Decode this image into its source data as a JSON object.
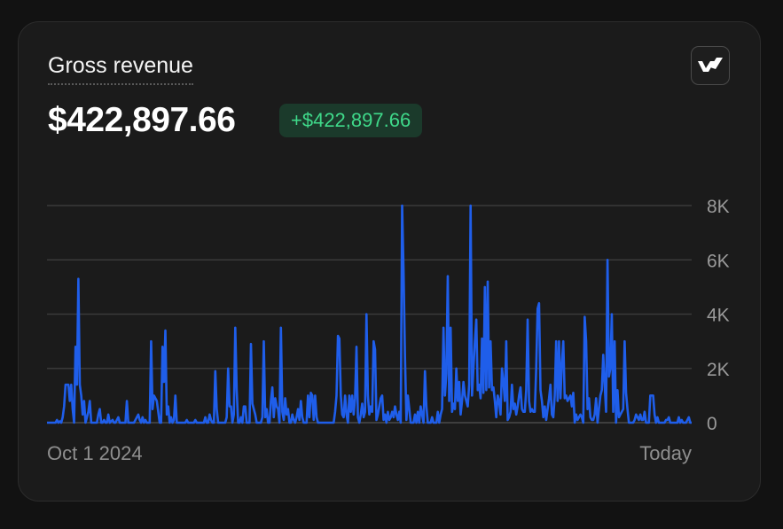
{
  "card": {
    "title": "Gross revenue",
    "amount": "$422,897.66",
    "delta": "+$422,897.66",
    "brand_icon": "stripe-logo-icon"
  },
  "colors": {
    "line": "#1f5eea",
    "delta_text": "#3fd98a",
    "delta_bg": "#1b3a2b",
    "grid": "#3a3a3a"
  },
  "chart_data": {
    "type": "line",
    "title": "",
    "xlabel": "",
    "ylabel": "",
    "x_start_label": "Oct 1 2024",
    "x_end_label": "Today",
    "ylim": [
      0,
      8000
    ],
    "yticks": [
      {
        "value": 0,
        "label": "0"
      },
      {
        "value": 2000,
        "label": "2K"
      },
      {
        "value": 4000,
        "label": "4K"
      },
      {
        "value": 6000,
        "label": "6K"
      },
      {
        "value": 8000,
        "label": "8K"
      }
    ],
    "grid": true,
    "legend": "none",
    "series": [
      {
        "values": [
          0,
          0,
          0,
          0,
          0,
          0,
          0,
          100,
          0,
          50,
          0,
          200,
          600,
          1400,
          1400,
          1400,
          800,
          1400,
          500,
          0,
          2800,
          1400,
          5300,
          1400,
          1000,
          300,
          800,
          0,
          200,
          400,
          800,
          0,
          0,
          0,
          0,
          0,
          300,
          500,
          0,
          0,
          100,
          0,
          0,
          300,
          0,
          50,
          100,
          0,
          0,
          100,
          200,
          0,
          0,
          0,
          0,
          0,
          800,
          0,
          0,
          0,
          0,
          0,
          100,
          200,
          300,
          100,
          0,
          200,
          0,
          100,
          0,
          0,
          0,
          3000,
          500,
          1000,
          900,
          800,
          400,
          0,
          0,
          2800,
          1500,
          3400,
          300,
          600,
          0,
          200,
          0,
          100,
          1000,
          0,
          0,
          0,
          0,
          0,
          0,
          0,
          100,
          0,
          0,
          0,
          0,
          0,
          100,
          0,
          0,
          0,
          0,
          0,
          0,
          200,
          0,
          0,
          300,
          100,
          0,
          0,
          1900,
          500,
          0,
          0,
          0,
          0,
          0,
          0,
          200,
          2000,
          600,
          600,
          0,
          300,
          3500,
          1200,
          0,
          0,
          200,
          0,
          600,
          600,
          0,
          0,
          0,
          2900,
          700,
          500,
          300,
          0,
          0,
          0,
          0,
          200,
          3000,
          200,
          500,
          0,
          0,
          800,
          1300,
          200,
          900,
          600,
          500,
          0,
          3500,
          400,
          100,
          900,
          300,
          500,
          0,
          0,
          300,
          100,
          0,
          200,
          500,
          100,
          800,
          200,
          0,
          0,
          0,
          1000,
          200,
          1100,
          1000,
          100,
          1000,
          200,
          0,
          0,
          0,
          0,
          0,
          0,
          0,
          0,
          0,
          0,
          0,
          0,
          400,
          1000,
          3200,
          3100,
          1000,
          300,
          200,
          1000,
          300,
          0,
          1000,
          400,
          1000,
          300,
          900,
          2800,
          200,
          0,
          300,
          700,
          200,
          400,
          4000,
          1000,
          300,
          600,
          400,
          3000,
          2700,
          100,
          300,
          600,
          900,
          1000,
          100,
          300,
          0,
          400,
          100,
          200,
          400,
          200,
          600,
          300,
          100,
          400,
          0,
          8000,
          5600,
          2400,
          100,
          1000,
          500,
          0,
          0,
          0,
          300,
          0,
          400,
          0,
          600,
          300,
          0,
          1900,
          600,
          0,
          0,
          0,
          200,
          0,
          0,
          0,
          400,
          0,
          300,
          500,
          3500,
          1000,
          1800,
          5400,
          800,
          3500,
          400,
          700,
          500,
          2000,
          800,
          1500,
          300,
          800,
          1500,
          1000,
          800,
          600,
          1400,
          8000,
          1000,
          2000,
          3000,
          3800,
          1200,
          1400,
          900,
          3100,
          1100,
          5000,
          1200,
          5200,
          1300,
          3000,
          1200,
          1300,
          800,
          200,
          1000,
          800,
          300,
          2000,
          1500,
          800,
          3000,
          100,
          200,
          400,
          1400,
          500,
          700,
          300,
          600,
          1000,
          1300,
          500,
          400,
          400,
          1200,
          3800,
          800,
          400,
          500,
          400,
          400,
          2000,
          4200,
          4400,
          1200,
          800,
          200,
          600,
          100,
          500,
          900,
          1400,
          300,
          200,
          1000,
          3000,
          800,
          3000,
          900,
          2200,
          3000,
          900,
          1000,
          800,
          900,
          1000,
          600,
          1100,
          0,
          300,
          100,
          200,
          300,
          200,
          0,
          3900,
          3000,
          500,
          900,
          200,
          100,
          100,
          300,
          900,
          0,
          500,
          1000,
          1200,
          2500,
          1400,
          400,
          6000,
          1700,
          2000,
          4000,
          400,
          3000,
          0,
          1200,
          200,
          300,
          400,
          500,
          3000,
          1100,
          500,
          0,
          0,
          0,
          0,
          100,
          300,
          200,
          100,
          300,
          100,
          100,
          400,
          0,
          0,
          0,
          1000,
          1000,
          1000,
          300,
          0,
          200,
          0,
          0,
          0,
          0,
          0,
          100,
          100,
          200,
          0,
          0,
          0,
          0,
          0,
          0,
          200,
          0,
          100,
          0,
          0,
          0,
          100,
          200,
          0,
          0
        ]
      }
    ]
  }
}
